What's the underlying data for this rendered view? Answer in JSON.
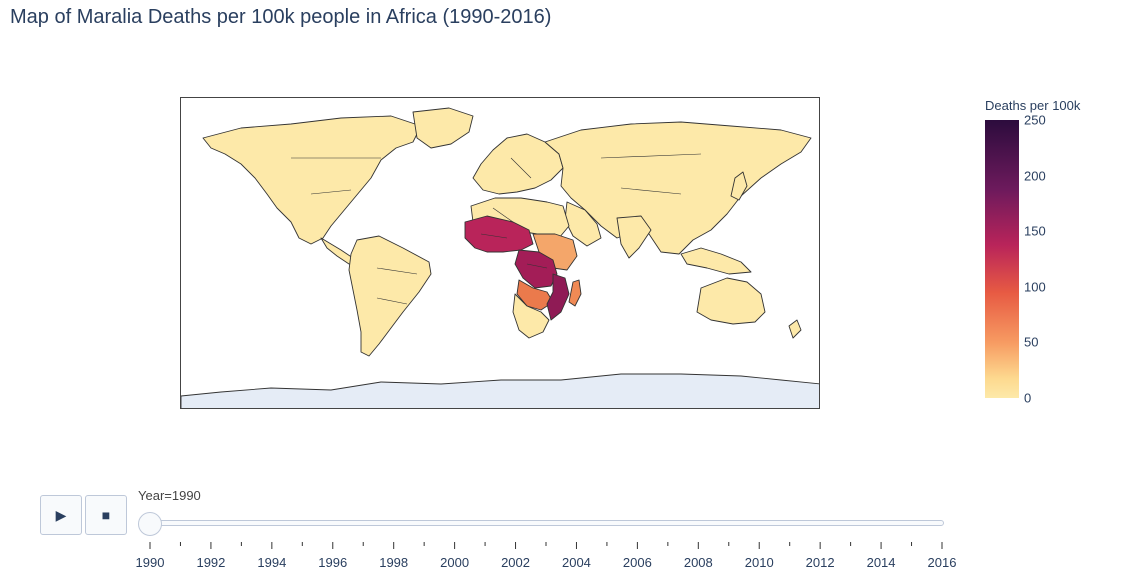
{
  "title": "Map of Maralia Deaths per 100k people in Africa (1990-2016)",
  "colorbar": {
    "title": "Deaths per 100k",
    "ticks": [
      "250",
      "200",
      "150",
      "100",
      "50",
      "0"
    ],
    "range": [
      0,
      250
    ],
    "colorscale": [
      "#fde9a9",
      "#f79b62",
      "#e75a43",
      "#b9245a",
      "#6d1a5c",
      "#2c0c3d"
    ]
  },
  "map": {
    "projection": "equirectangular",
    "land_color": "#fde9a9",
    "antarctica_color": "#e5ecf6",
    "border_color": "#333333",
    "highlight_regions": [
      {
        "region": "West Africa",
        "level": "high"
      },
      {
        "region": "Central Africa",
        "level": "high"
      },
      {
        "region": "Mozambique",
        "level": "high"
      },
      {
        "region": "East Africa",
        "level": "medium"
      },
      {
        "region": "Madagascar",
        "level": "medium"
      }
    ]
  },
  "controls": {
    "play_icon": "play-icon",
    "stop_icon": "stop-icon",
    "slider_label": "Year=1990",
    "current_year": 1990,
    "years": [
      "1990",
      "1992",
      "1994",
      "1996",
      "1998",
      "2000",
      "2002",
      "2004",
      "2006",
      "2008",
      "2010",
      "2012",
      "2014",
      "2016"
    ]
  }
}
